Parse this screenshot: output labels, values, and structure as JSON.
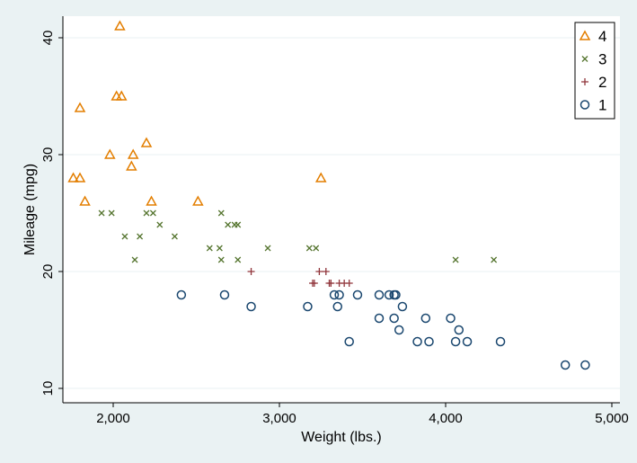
{
  "chart_data": {
    "type": "scatter",
    "xlabel": "Weight (lbs.)",
    "ylabel": "Mileage (mpg)",
    "xlim": [
      1700,
      5050
    ],
    "ylim": [
      9,
      42
    ],
    "xticks": [
      2000,
      3000,
      4000,
      5000
    ],
    "xtick_labels": [
      "2,000",
      "3,000",
      "4,000",
      "5,000"
    ],
    "yticks": [
      10,
      20,
      30,
      40
    ],
    "ytick_labels": [
      "10",
      "20",
      "30",
      "40"
    ],
    "grid": true,
    "legend_position": "top-right",
    "series": [
      {
        "name": "4",
        "marker": "triangle",
        "color": "#e37e00",
        "points": [
          [
            1760,
            28
          ],
          [
            1800,
            28
          ],
          [
            1800,
            34
          ],
          [
            1830,
            26
          ],
          [
            1980,
            30
          ],
          [
            2020,
            35
          ],
          [
            2050,
            35
          ],
          [
            2040,
            41
          ],
          [
            2110,
            29
          ],
          [
            2120,
            30
          ],
          [
            2200,
            31
          ],
          [
            2230,
            26
          ],
          [
            2510,
            26
          ],
          [
            3250,
            28
          ]
        ]
      },
      {
        "name": "3",
        "marker": "x",
        "color": "#55752f",
        "points": [
          [
            1930,
            25
          ],
          [
            1990,
            25
          ],
          [
            2070,
            23
          ],
          [
            2130,
            21
          ],
          [
            2160,
            23
          ],
          [
            2200,
            25
          ],
          [
            2240,
            25
          ],
          [
            2280,
            24
          ],
          [
            2370,
            23
          ],
          [
            2580,
            22
          ],
          [
            2640,
            22
          ],
          [
            2650,
            25
          ],
          [
            2650,
            21
          ],
          [
            2690,
            24
          ],
          [
            2730,
            24
          ],
          [
            2750,
            24
          ],
          [
            2750,
            21
          ],
          [
            2930,
            22
          ],
          [
            3180,
            22
          ],
          [
            3220,
            22
          ],
          [
            4060,
            21
          ],
          [
            4290,
            21
          ]
        ]
      },
      {
        "name": "2",
        "marker": "plus",
        "color": "#90353b",
        "points": [
          [
            2830,
            20
          ],
          [
            3200,
            19
          ],
          [
            3210,
            19
          ],
          [
            3240,
            20
          ],
          [
            3280,
            20
          ],
          [
            3300,
            19
          ],
          [
            3310,
            19
          ],
          [
            3360,
            19
          ],
          [
            3390,
            19
          ],
          [
            3420,
            19
          ]
        ]
      },
      {
        "name": "1",
        "marker": "circle",
        "color": "#1a476f",
        "points": [
          [
            2410,
            18
          ],
          [
            2670,
            18
          ],
          [
            2830,
            17
          ],
          [
            3170,
            17
          ],
          [
            3330,
            18
          ],
          [
            3360,
            18
          ],
          [
            3350,
            17
          ],
          [
            3420,
            14
          ],
          [
            3470,
            18
          ],
          [
            3600,
            18
          ],
          [
            3600,
            16
          ],
          [
            3660,
            18
          ],
          [
            3690,
            16
          ],
          [
            3690,
            18
          ],
          [
            3700,
            18
          ],
          [
            3720,
            15
          ],
          [
            3740,
            17
          ],
          [
            3830,
            14
          ],
          [
            3880,
            16
          ],
          [
            3900,
            14
          ],
          [
            4030,
            16
          ],
          [
            4060,
            14
          ],
          [
            4080,
            15
          ],
          [
            4130,
            14
          ],
          [
            4330,
            14
          ],
          [
            4720,
            12
          ],
          [
            4840,
            12
          ]
        ]
      }
    ]
  }
}
